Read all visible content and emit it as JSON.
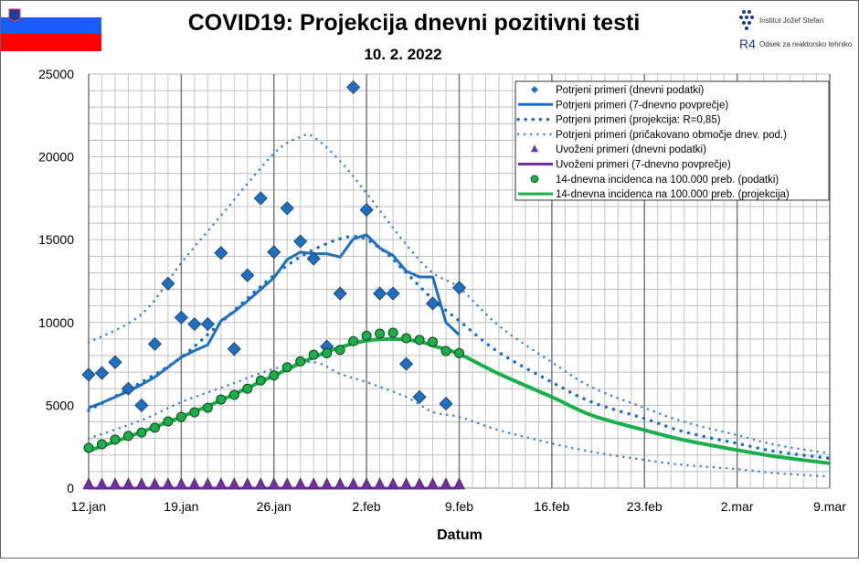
{
  "chart_data": {
    "type": "line",
    "title": "COVID19: Projekcija dnevni pozitivni testi",
    "subtitle": "10. 2. 2022",
    "xlabel": "Datum",
    "ylabel": "",
    "ylim": [
      0,
      25000
    ],
    "xlim_days": [
      0,
      56
    ],
    "grid": true,
    "legend_position": "top-right",
    "x_tick_labels": [
      "12.jan",
      "19.jan",
      "26.jan",
      "2.feb",
      "9.feb",
      "16.feb",
      "23.feb",
      "2.mar",
      "9.mar"
    ],
    "y_tick_labels": [
      "0",
      "5000",
      "10000",
      "15000",
      "20000",
      "25000"
    ],
    "y_ticks": [
      0,
      5000,
      10000,
      15000,
      20000,
      25000
    ],
    "x_note": "x values are days since 12.jan",
    "series": [
      {
        "name": "Potrjeni primeri (dnevni podatki)",
        "kind": "diamond",
        "color": "#1f6fbf",
        "x": [
          0,
          1,
          2,
          3,
          4,
          5,
          6,
          7,
          8,
          9,
          10,
          11,
          12,
          13,
          14,
          15,
          16,
          17,
          18,
          19,
          20,
          21,
          22,
          23,
          24,
          25,
          26,
          27,
          28
        ],
        "values": [
          6850,
          6950,
          7600,
          6000,
          5000,
          8700,
          12350,
          10300,
          9900,
          9900,
          14200,
          8400,
          12850,
          17500,
          14250,
          16900,
          14900,
          13850,
          8550,
          11750,
          24200,
          16800,
          11750,
          11750,
          7500,
          5500,
          11150,
          5100,
          12100
        ]
      },
      {
        "name": "Potrjeni primeri (7-dnevno povprečje)",
        "kind": "line",
        "color": "#1f6fbf",
        "x": [
          0,
          1,
          2,
          3,
          4,
          5,
          6,
          7,
          8,
          9,
          10,
          11,
          12,
          13,
          14,
          15,
          16,
          17,
          18,
          19,
          20,
          21,
          22,
          23,
          24,
          25,
          26,
          27,
          28
        ],
        "values": [
          4850,
          5150,
          5500,
          5850,
          6250,
          6700,
          7300,
          7900,
          8300,
          8650,
          10100,
          10650,
          11300,
          12000,
          12700,
          13800,
          14250,
          14150,
          14150,
          13950,
          15050,
          15300,
          14500,
          14050,
          13100,
          12750,
          12750,
          10000,
          9250
        ]
      },
      {
        "name": "Potrjeni primeri (projekcija: R=0,85)",
        "kind": "dotted",
        "color": "#1f6fbf",
        "x": [
          0,
          4,
          7,
          10,
          14,
          17,
          20,
          22,
          24,
          26,
          28,
          31,
          35,
          38,
          42,
          45,
          49,
          52,
          56
        ],
        "values": [
          4700,
          6400,
          7900,
          10000,
          12850,
          14400,
          15200,
          14500,
          13000,
          11400,
          10100,
          8200,
          6400,
          5200,
          4200,
          3400,
          2700,
          2200,
          1800
        ]
      },
      {
        "name": "Potrjeni primeri (pričakovano območje dnev. pod.)",
        "kind": "thin-dotted-upper",
        "color": "#4a7ec8",
        "x": [
          0,
          4,
          7,
          10,
          14,
          16,
          17,
          19,
          21,
          24,
          26,
          28,
          31,
          35,
          38,
          42,
          45,
          49,
          52,
          56
        ],
        "values": [
          8800,
          10500,
          13600,
          16450,
          20200,
          21200,
          21200,
          19750,
          17800,
          14700,
          13000,
          12100,
          9800,
          7600,
          6100,
          4850,
          4000,
          3200,
          2600,
          2100
        ]
      },
      {
        "name": "Potrjeni primeri (pričakovano območje dnev. pod.) – spodnja meja",
        "kind": "thin-dotted-lower",
        "color": "#4a7ec8",
        "x": [
          0,
          4,
          7,
          10,
          14,
          17,
          19,
          21,
          24,
          26,
          28,
          31,
          35,
          38,
          42,
          45,
          49,
          52,
          56
        ],
        "values": [
          3000,
          4100,
          5200,
          6050,
          7200,
          7600,
          6900,
          6400,
          5500,
          4600,
          4300,
          3500,
          2700,
          2200,
          1700,
          1400,
          1150,
          900,
          700
        ]
      },
      {
        "name": "Uvoženi primeri (dnevni podatki)",
        "kind": "triangle",
        "color": "#7030a0",
        "x": [
          0,
          1,
          2,
          3,
          4,
          5,
          6,
          7,
          8,
          9,
          10,
          11,
          12,
          13,
          14,
          15,
          16,
          17,
          18,
          19,
          20,
          21,
          22,
          23,
          24,
          25,
          26,
          27,
          28
        ],
        "values": [
          0,
          0,
          0,
          0,
          0,
          0,
          0,
          0,
          0,
          0,
          0,
          0,
          0,
          0,
          0,
          0,
          0,
          0,
          0,
          0,
          0,
          0,
          0,
          0,
          0,
          0,
          0,
          0,
          0
        ]
      },
      {
        "name": "Uvoženi primeri (7-dnevno povprečje)",
        "kind": "line",
        "color": "#7030a0",
        "x": [
          0,
          28
        ],
        "values": [
          0,
          0
        ]
      },
      {
        "name": "14-dnevna incidenca na 100.000 preb. (podatki)",
        "kind": "circle",
        "color": "#1aaf4a",
        "x": [
          0,
          1,
          2,
          3,
          4,
          5,
          6,
          7,
          8,
          9,
          10,
          11,
          12,
          13,
          14,
          15,
          16,
          17,
          18,
          19,
          20,
          21,
          22,
          23,
          24,
          25,
          26,
          27,
          28
        ],
        "values": [
          2430,
          2650,
          2930,
          3150,
          3350,
          3650,
          4030,
          4300,
          4580,
          4850,
          5350,
          5630,
          6000,
          6500,
          6800,
          7300,
          7650,
          8050,
          8150,
          8350,
          8870,
          9200,
          9330,
          9380,
          9050,
          8950,
          8830,
          8280,
          8150
        ]
      },
      {
        "name": "14-dnevna incidenca na 100.000 preb. (projekcija)",
        "kind": "thick-line",
        "color": "#1aaf4a",
        "x": [
          0,
          3,
          7,
          10,
          14,
          17,
          19,
          21,
          23,
          25,
          26,
          28,
          31,
          35,
          38,
          42,
          45,
          49,
          52,
          56
        ],
        "values": [
          2250,
          3100,
          4300,
          5300,
          6800,
          7900,
          8500,
          8900,
          9000,
          8850,
          8600,
          8100,
          6900,
          5500,
          4400,
          3500,
          2900,
          2300,
          1900,
          1500
        ]
      }
    ],
    "legend": [
      "Potrjeni primeri (dnevni podatki)",
      "Potrjeni primeri (7-dnevno povprečje)",
      "Potrjeni primeri (projekcija: R=0,85)",
      "Potrjeni primeri (pričakovano območje dnev. pod.)",
      "Uvoženi primeri (dnevni podatki)",
      "Uvoženi primeri (7-dnevno povprečje)",
      "14-dnevna incidenca na 100.000 preb. (podatki)",
      "14-dnevna incidenca na 100.000 preb. (projekcija)"
    ]
  },
  "logos": {
    "institute": "Institut Jožef Stefan",
    "department": "Odsek za reaktorsko tehniko",
    "r4": "R4"
  }
}
